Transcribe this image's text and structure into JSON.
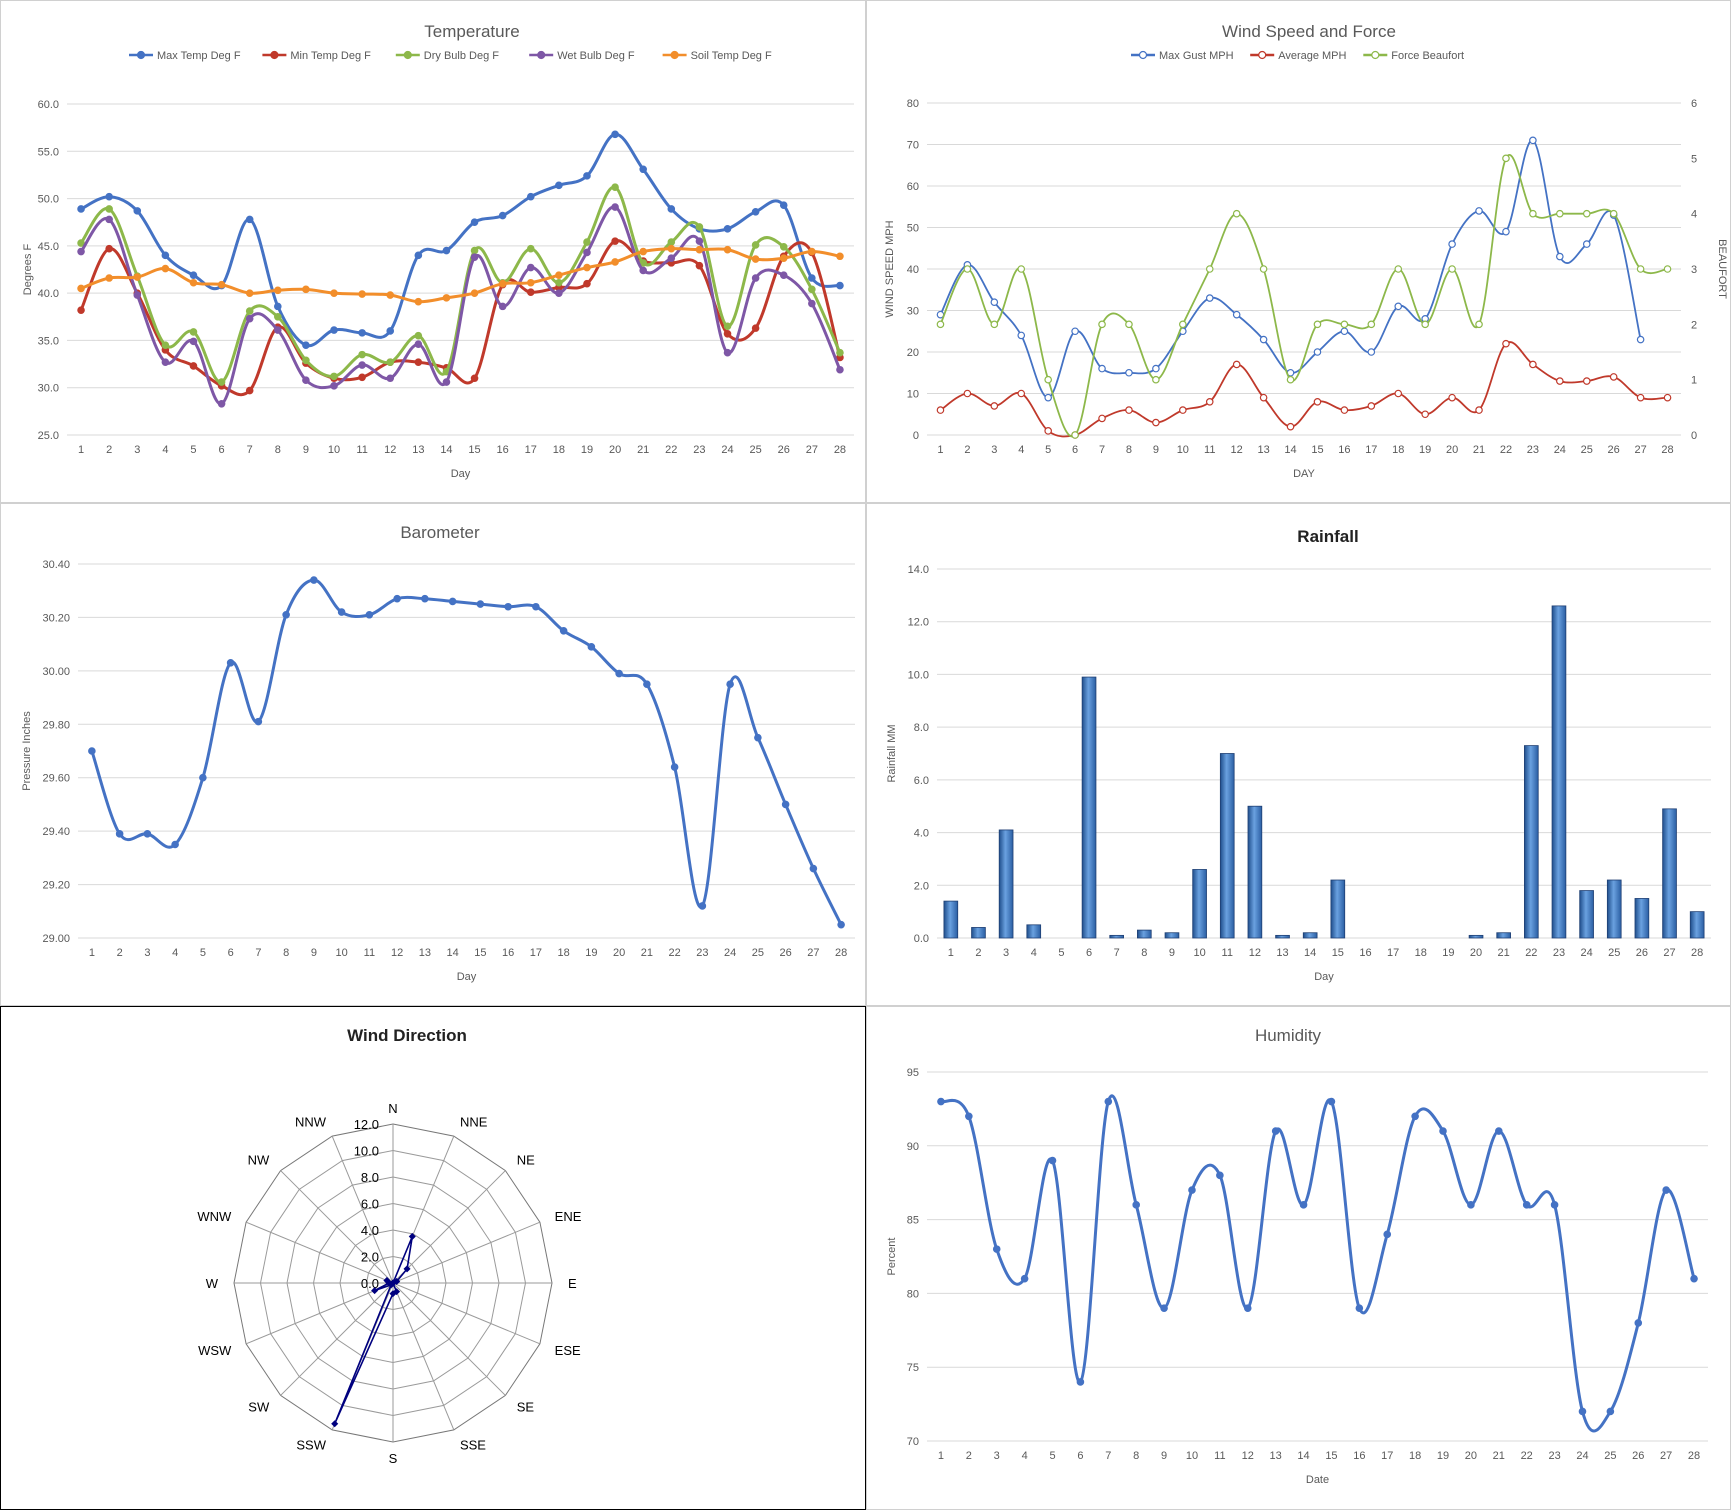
{
  "chart_data": [
    {
      "id": "temperature",
      "type": "line",
      "title": "Temperature",
      "xlabel": "Day",
      "ylabel": "Degrees F",
      "ylim": [
        25,
        60
      ],
      "yticks": [
        "25.0",
        "30.0",
        "35.0",
        "40.0",
        "45.0",
        "50.0",
        "55.0",
        "60.0"
      ],
      "yticks_values": [
        25,
        30,
        35,
        40,
        45,
        50,
        55,
        60
      ],
      "x": [
        1,
        2,
        3,
        4,
        5,
        6,
        7,
        8,
        9,
        10,
        11,
        12,
        13,
        14,
        15,
        16,
        17,
        18,
        19,
        20,
        21,
        22,
        23,
        24,
        25,
        26,
        27,
        28
      ],
      "legend": "top",
      "grid": true,
      "series": [
        {
          "name": "Max Temp Deg F",
          "color": "#4472C4",
          "values": [
            48.9,
            50.2,
            48.7,
            44.0,
            41.9,
            40.8,
            47.8,
            38.6,
            34.5,
            36.1,
            35.8,
            36.0,
            44.0,
            44.5,
            47.5,
            48.2,
            50.2,
            51.4,
            52.4,
            56.8,
            53.1,
            48.9,
            46.8,
            46.8,
            48.6,
            49.3,
            41.6,
            40.8
          ]
        },
        {
          "name": "Min Temp Deg F",
          "color": "#C0392B",
          "values": [
            38.2,
            44.7,
            40.0,
            34.0,
            32.3,
            30.2,
            29.7,
            36.4,
            32.6,
            31.0,
            31.1,
            32.7,
            32.7,
            32.1,
            31.0,
            40.9,
            40.1,
            40.6,
            41.0,
            45.5,
            43.4,
            43.2,
            42.9,
            35.7,
            36.3,
            43.9,
            44.3,
            33.2
          ]
        },
        {
          "name": "Dry Bulb Deg F",
          "color": "#8DB84A",
          "values": [
            45.3,
            48.9,
            41.8,
            34.5,
            35.9,
            30.6,
            38.1,
            37.5,
            32.9,
            31.2,
            33.5,
            32.7,
            35.5,
            31.7,
            44.5,
            41.1,
            44.7,
            41.1,
            45.4,
            51.2,
            43.2,
            45.4,
            47.0,
            36.5,
            45.1,
            44.9,
            40.4,
            33.7
          ]
        },
        {
          "name": "Wet Bulb Deg F",
          "color": "#7E57A6",
          "values": [
            44.4,
            47.8,
            39.8,
            32.7,
            34.9,
            28.3,
            37.3,
            36.1,
            30.8,
            30.2,
            32.4,
            31.0,
            34.6,
            30.6,
            43.8,
            38.6,
            42.7,
            40.0,
            44.3,
            49.1,
            42.4,
            43.7,
            45.5,
            33.7,
            41.6,
            41.9,
            38.9,
            31.9
          ]
        },
        {
          "name": "Soil Temp Deg F",
          "color": "#F28E2B",
          "values": [
            40.5,
            41.6,
            41.7,
            42.6,
            41.1,
            40.9,
            40.0,
            40.3,
            40.4,
            40.0,
            39.9,
            39.8,
            39.1,
            39.5,
            40.0,
            41.0,
            41.1,
            41.9,
            42.7,
            43.3,
            44.4,
            44.7,
            44.6,
            44.6,
            43.6,
            43.7,
            44.4,
            43.9
          ]
        }
      ]
    },
    {
      "id": "wind",
      "type": "line",
      "title": "Wind Speed and Force",
      "xlabel": "DAY",
      "ylabel": "WIND SPEED MPH",
      "ylabel2": "BEAUFORT",
      "ylim": [
        0,
        80
      ],
      "ylim2": [
        0,
        6
      ],
      "yticks": [
        "0",
        "10",
        "20",
        "30",
        "40",
        "50",
        "60",
        "70",
        "80"
      ],
      "yticks_values": [
        0,
        10,
        20,
        30,
        40,
        50,
        60,
        70,
        80
      ],
      "yticks2": [
        "0",
        "1",
        "2",
        "3",
        "4",
        "5",
        "6"
      ],
      "yticks2_values": [
        0,
        1,
        2,
        3,
        4,
        5,
        6
      ],
      "x": [
        1,
        2,
        3,
        4,
        5,
        6,
        7,
        8,
        9,
        10,
        11,
        12,
        13,
        14,
        15,
        16,
        17,
        18,
        19,
        20,
        21,
        22,
        23,
        24,
        25,
        26,
        27,
        28
      ],
      "legend": "top",
      "grid": true,
      "series": [
        {
          "name": "Max Gust MPH",
          "color": "#4472C4",
          "axis": "left",
          "values": [
            29,
            41,
            32,
            24,
            9,
            25,
            16,
            15,
            16,
            25,
            33,
            29,
            23,
            15,
            20,
            25,
            20,
            31,
            28,
            46,
            54,
            49,
            71,
            43,
            46,
            53,
            23,
            null
          ]
        },
        {
          "name": "Average MPH",
          "color": "#C0392B",
          "axis": "left",
          "values": [
            6,
            10,
            7,
            10,
            1,
            0,
            4,
            6,
            3,
            6,
            8,
            17,
            9,
            2,
            8,
            6,
            7,
            10,
            5,
            9,
            6,
            22,
            17,
            13,
            13,
            14,
            9,
            9
          ]
        },
        {
          "name": "Force Beaufort",
          "color": "#8DB84A",
          "axis": "right",
          "values": [
            2,
            3,
            2,
            3,
            1,
            0,
            2,
            2,
            1,
            2,
            3,
            4,
            3,
            1,
            2,
            2,
            2,
            3,
            2,
            3,
            2,
            5,
            4,
            4,
            4,
            4,
            3,
            3
          ]
        }
      ]
    },
    {
      "id": "barometer",
      "type": "line",
      "title": "Barometer",
      "xlabel": "Day",
      "ylabel": "Pressure Inches",
      "ylim": [
        29.0,
        30.4
      ],
      "yticks": [
        "29.00",
        "29.20",
        "29.40",
        "29.60",
        "29.80",
        "30.00",
        "30.20",
        "30.40"
      ],
      "yticks_values": [
        29.0,
        29.2,
        29.4,
        29.6,
        29.8,
        30.0,
        30.2,
        30.4
      ],
      "x": [
        1,
        2,
        3,
        4,
        5,
        6,
        7,
        8,
        9,
        10,
        11,
        12,
        13,
        14,
        15,
        16,
        17,
        18,
        19,
        20,
        21,
        22,
        23,
        24,
        25,
        26,
        27,
        28
      ],
      "grid": true,
      "series": [
        {
          "color": "#4472C4",
          "values": [
            29.7,
            29.39,
            29.39,
            29.35,
            29.6,
            30.03,
            29.81,
            30.21,
            30.34,
            30.22,
            30.21,
            30.27,
            30.27,
            30.26,
            30.25,
            30.24,
            30.24,
            30.15,
            30.09,
            29.99,
            29.95,
            29.64,
            29.12,
            29.95,
            29.75,
            29.5,
            29.26,
            29.05
          ]
        }
      ]
    },
    {
      "id": "rainfall",
      "type": "bar",
      "title": "Rainfall",
      "xlabel": "Day",
      "ylabel": "Rainfall MM",
      "ylim": [
        0,
        14
      ],
      "yticks": [
        "0.0",
        "2.0",
        "4.0",
        "6.0",
        "8.0",
        "10.0",
        "12.0",
        "14.0"
      ],
      "yticks_values": [
        0,
        2,
        4,
        6,
        8,
        10,
        12,
        14
      ],
      "categories": [
        "1",
        "2",
        "3",
        "4",
        "5",
        "6",
        "7",
        "8",
        "9",
        "10",
        "11",
        "12",
        "13",
        "14",
        "15",
        "16",
        "17",
        "18",
        "19",
        "20",
        "21",
        "22",
        "23",
        "24",
        "25",
        "26",
        "27",
        "28"
      ],
      "grid": true,
      "series": [
        {
          "color": "#3A6EB5",
          "values": [
            1.4,
            0.4,
            4.1,
            0.5,
            0,
            9.9,
            0.1,
            0.3,
            0.2,
            2.6,
            7.0,
            5.0,
            0.1,
            0.2,
            2.2,
            0,
            0,
            0,
            0,
            0.1,
            0.2,
            7.3,
            12.6,
            1.8,
            2.2,
            1.5,
            4.9,
            1.0
          ]
        }
      ]
    },
    {
      "id": "wind-direction",
      "type": "radar",
      "title": "Wind Direction",
      "categories": [
        "N",
        "NNE",
        "NE",
        "ENE",
        "E",
        "ESE",
        "SE",
        "SSE",
        "S",
        "SSW",
        "SW",
        "WSW",
        "W",
        "WNW",
        "NW",
        "NNW"
      ],
      "ylim": [
        0,
        12
      ],
      "yticks": [
        "0.0",
        "2.0",
        "4.0",
        "6.0",
        "8.0",
        "10.0",
        "12.0"
      ],
      "yticks_values": [
        0,
        2,
        4,
        6,
        8,
        10,
        12
      ],
      "series": [
        {
          "color": "#00007F",
          "values": [
            0,
            3.8,
            1.5,
            0.3,
            0,
            0,
            0,
            0.7,
            0.8,
            11.5,
            0.2,
            1.5,
            0.3,
            0.5,
            0,
            0
          ]
        }
      ]
    },
    {
      "id": "humidity",
      "type": "line",
      "title": "Humidity",
      "xlabel": "Date",
      "ylabel": "Percent",
      "ylim": [
        70,
        95
      ],
      "yticks": [
        "70",
        "75",
        "80",
        "85",
        "90",
        "95"
      ],
      "yticks_values": [
        70,
        75,
        80,
        85,
        90,
        95
      ],
      "x": [
        1,
        2,
        3,
        4,
        5,
        6,
        7,
        8,
        9,
        10,
        11,
        12,
        13,
        14,
        15,
        16,
        17,
        18,
        19,
        20,
        21,
        22,
        23,
        24,
        25,
        26,
        27,
        28
      ],
      "grid": true,
      "series": [
        {
          "color": "#4472C4",
          "values": [
            93,
            92,
            83,
            81,
            89,
            74,
            93,
            86,
            79,
            87,
            88,
            79,
            91,
            86,
            93,
            79,
            84,
            92,
            91,
            86,
            91,
            86,
            86,
            72,
            72,
            78,
            87,
            81
          ]
        }
      ]
    }
  ]
}
